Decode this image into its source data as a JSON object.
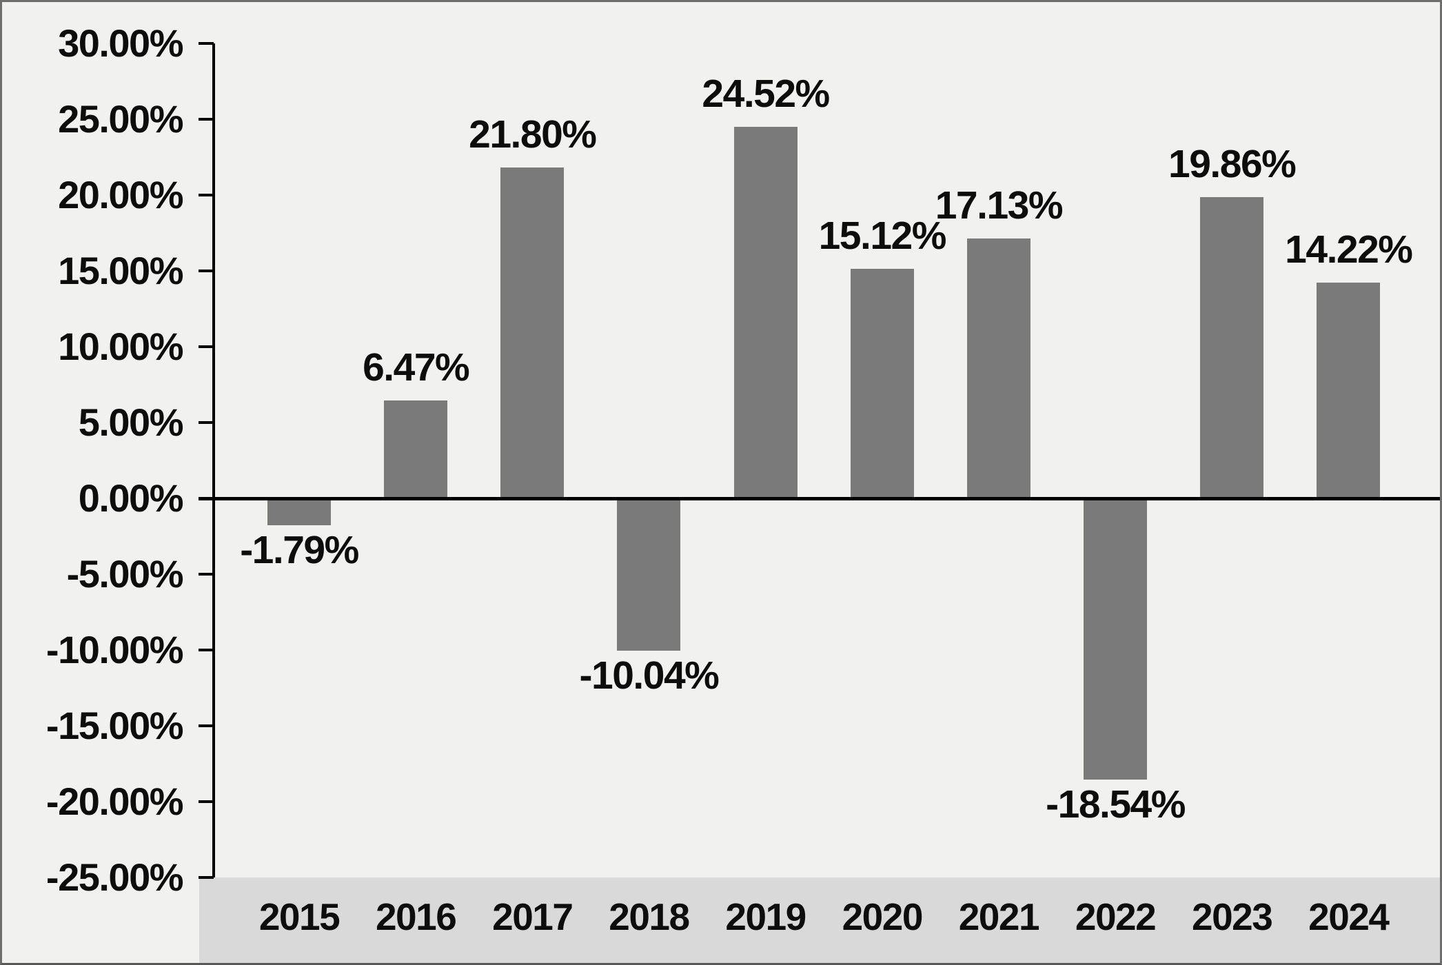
{
  "chart_data": {
    "type": "bar",
    "title": "",
    "xlabel": "",
    "ylabel": "",
    "categories": [
      "2015",
      "2016",
      "2017",
      "2018",
      "2019",
      "2020",
      "2021",
      "2022",
      "2023",
      "2024"
    ],
    "values": [
      -1.79,
      6.47,
      21.8,
      -10.04,
      24.52,
      15.12,
      17.13,
      -18.54,
      19.86,
      14.22
    ],
    "data_labels": [
      "-1.79%",
      "6.47%",
      "21.80%",
      "-10.04%",
      "24.52%",
      "15.12%",
      "17.13%",
      "-18.54%",
      "19.86%",
      "14.22%"
    ],
    "y_tick_labels": [
      "30.00%",
      "25.00%",
      "20.00%",
      "15.00%",
      "10.00%",
      "5.00%",
      "0.00%",
      "-5.00%",
      "-10.00%",
      "-15.00%",
      "-20.00%",
      "-25.00%"
    ],
    "y_tick_values": [
      30,
      25,
      20,
      15,
      10,
      5,
      0,
      -5,
      -10,
      -15,
      -20,
      -25
    ],
    "ylim": [
      -25,
      30
    ],
    "grid": "off",
    "legend": "none",
    "colors": {
      "bar": "#7a7a7a",
      "plot_background": "#f1f1f0",
      "category_strip": "#d9d9d9",
      "axis": "#000000",
      "text": "#0d0d0d",
      "frame": "#6e6e6e"
    }
  }
}
